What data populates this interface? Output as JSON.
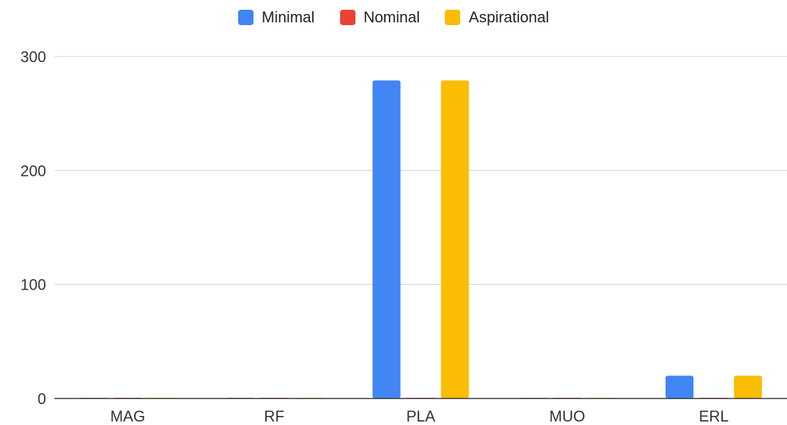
{
  "chart_data": {
    "type": "bar",
    "categories": [
      "MAG",
      "RF",
      "PLA",
      "MUO",
      "ERL"
    ],
    "series": [
      {
        "name": "Minimal",
        "color": "#4285F4",
        "values": [
          0,
          0,
          279,
          0,
          20
        ]
      },
      {
        "name": "Nominal",
        "color": "#EA4335",
        "values": [
          0,
          0,
          0,
          0,
          0
        ]
      },
      {
        "name": "Aspirational",
        "color": "#FBBC04",
        "values": [
          0,
          0,
          279,
          0,
          20
        ]
      }
    ],
    "y_ticks": [
      "0",
      "100",
      "200",
      "300"
    ],
    "ylim": [
      0,
      300
    ],
    "grid": true,
    "legend_position": "top-center",
    "title": "",
    "xlabel": "",
    "ylabel": ""
  }
}
